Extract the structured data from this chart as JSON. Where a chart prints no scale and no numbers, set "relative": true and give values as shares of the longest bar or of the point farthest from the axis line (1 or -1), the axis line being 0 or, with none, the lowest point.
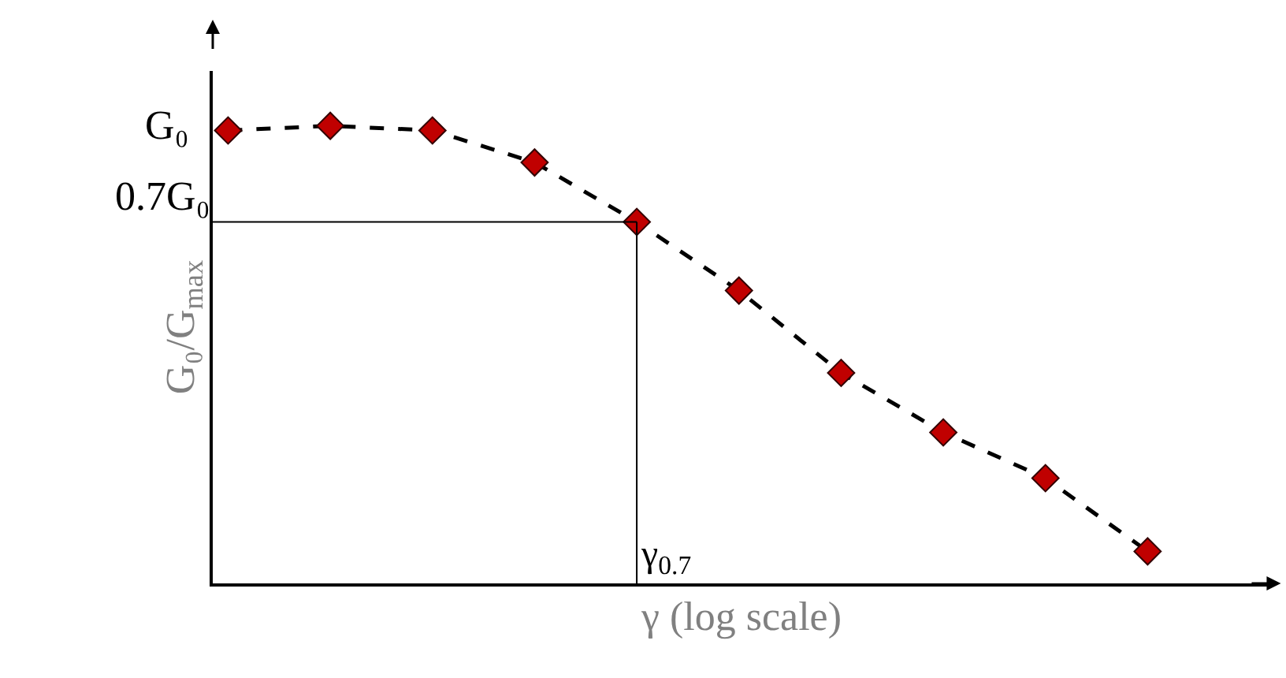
{
  "chart_data": {
    "type": "line",
    "relative": true,
    "xlabel": "γ (log scale)",
    "ylabel": "G₀/G$_{max}$",
    "categories": [
      null,
      null,
      null,
      null,
      null,
      null,
      null,
      null,
      null,
      null
    ],
    "series": [
      {
        "color": "#000000",
        "colors": [
          "#c00000",
          "#c00000",
          "#c00000",
          "#c00000",
          "#c00000",
          "#c00000",
          "#c00000",
          "#c00000",
          "#c00000",
          "#c00000"
        ],
        "values": [
          0.99,
          1,
          0.99,
          0.92,
          0.79,
          0.64,
          0.46,
          0.33,
          0.23,
          0.07
        ]
      }
    ],
    "marker": "diamond",
    "line_style": "dashed",
    "grid": false,
    "legend": false,
    "annotations": [
      "G₀",
      "γ$_{0.7}$"
    ],
    "ref_lines": [
      {
        "axis": "y",
        "value": 0.79,
        "label": "0.7G₀"
      }
    ]
  }
}
